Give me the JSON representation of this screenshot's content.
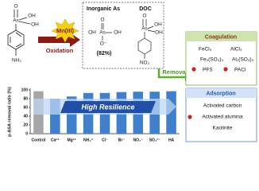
{
  "diagram": {
    "reactant": {
      "o_top": "O",
      "as": "As",
      "oh1": "OH",
      "oh2": "OH",
      "nh2": "NH₂"
    },
    "oxidant": "Mn(III)",
    "process": "Oxidation",
    "products": {
      "inorganic_title": "Inorganic As",
      "doc_title": "DOC",
      "arsenate": {
        "o_top": "O",
        "as": "As",
        "oh1": "OH",
        "oh2": "OH",
        "o_minus": "O⁻"
      },
      "yield": "(82%)",
      "doc": {
        "o_top": "O",
        "as": "As",
        "oh1": "OH",
        "oh2": "OH",
        "no2": "NO₂"
      }
    },
    "removal": "Removal",
    "coagulation": {
      "title": "Coagulation",
      "items": [
        "FeCl₃",
        "AlCl₃",
        "Fe₂(SO₄)₃",
        "Al₂(SO₄)₃",
        "PFS",
        "PACl"
      ]
    },
    "adsorption": {
      "title": "Adsorption",
      "items": [
        "Activated carbon",
        "Activated alumina",
        "Kaolinite"
      ]
    }
  },
  "chart_data": {
    "type": "bar",
    "ylabel": "p-ASA removal ratio (%)",
    "annotation": "High Resilience",
    "categories": [
      "Control",
      "Ca²⁺",
      "Mg²⁺",
      "NH₄⁺",
      "Cl⁻",
      "Br⁻",
      "NO₃⁻",
      "SO₄²⁻",
      "HA"
    ],
    "values": [
      97,
      80,
      85,
      93,
      93,
      95,
      96,
      96,
      97
    ],
    "colors": [
      "#a6a6a6",
      "#3f7fcc",
      "#3f7fcc",
      "#3f7fcc",
      "#3f7fcc",
      "#3f7fcc",
      "#3f7fcc",
      "#3f7fcc",
      "#3f7fcc"
    ],
    "ylim": [
      0,
      100
    ],
    "yticks": [
      0,
      20,
      40,
      60,
      80,
      100
    ]
  }
}
